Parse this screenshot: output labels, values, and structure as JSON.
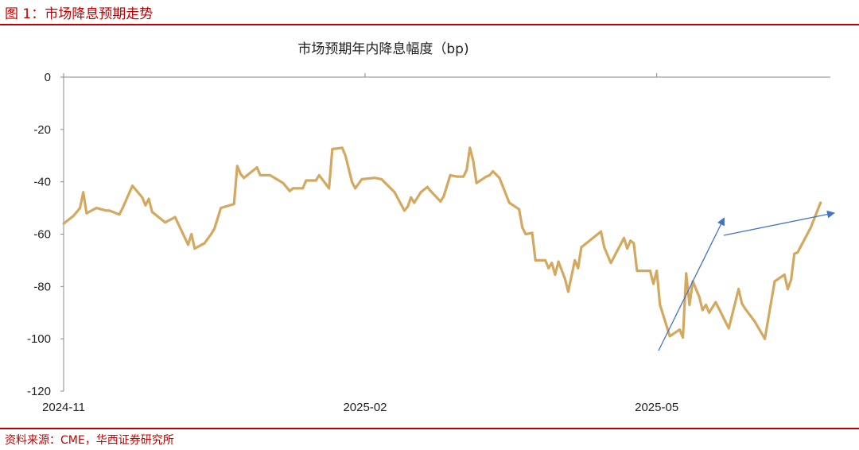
{
  "figure": {
    "label": "图 1：市场降息预期走势",
    "source": "资料来源：CME，华西证券研究所"
  },
  "colors": {
    "accent": "#c00000",
    "line": "#d4a85e",
    "arrow": "#4472c4",
    "axis": "#888888"
  },
  "chart_data": {
    "type": "line",
    "title": "市场预期年内降息幅度（bp)",
    "xlabel": "",
    "ylabel": "",
    "ylim": [
      -120,
      0
    ],
    "yticks": [
      0,
      -20,
      -40,
      -60,
      -80,
      -100,
      -120
    ],
    "xlim": [
      "2024-11-01",
      "2025-06-23"
    ],
    "xticks": [
      {
        "date": "2024-11-01",
        "label": "2024-11"
      },
      {
        "date": "2025-02-01",
        "label": "2025-02"
      },
      {
        "date": "2025-05-01",
        "label": "2025-05"
      }
    ],
    "grid": false,
    "legend": "none",
    "series": [
      {
        "color": "#d4a85e",
        "points": [
          [
            "2024-11-01",
            -56
          ],
          [
            "2024-11-04",
            -53
          ],
          [
            "2024-11-06",
            -50
          ],
          [
            "2024-11-07",
            -44
          ],
          [
            "2024-11-08",
            -52
          ],
          [
            "2024-11-11",
            -50
          ],
          [
            "2024-11-14",
            -51
          ],
          [
            "2024-11-15",
            -51
          ],
          [
            "2024-11-18",
            -52.5
          ],
          [
            "2024-11-19",
            -50
          ],
          [
            "2024-11-22",
            -41.5
          ],
          [
            "2024-11-25",
            -46
          ],
          [
            "2024-11-26",
            -49
          ],
          [
            "2024-11-27",
            -46.5
          ],
          [
            "2024-11-28",
            -51.5
          ],
          [
            "2024-12-02",
            -55.5
          ],
          [
            "2024-12-05",
            -53.5
          ],
          [
            "2024-12-09",
            -64
          ],
          [
            "2024-12-10",
            -60
          ],
          [
            "2024-12-11",
            -65.5
          ],
          [
            "2024-12-14",
            -63.5
          ],
          [
            "2024-12-16",
            -60
          ],
          [
            "2024-12-17",
            -58
          ],
          [
            "2024-12-19",
            -50
          ],
          [
            "2024-12-23",
            -48.5
          ],
          [
            "2024-12-24",
            -34
          ],
          [
            "2024-12-25",
            -37
          ],
          [
            "2024-12-26",
            -38.5
          ],
          [
            "2024-12-30",
            -34.5
          ],
          [
            "2024-12-31",
            -37.5
          ],
          [
            "2025-01-02",
            -37.5
          ],
          [
            "2025-01-03",
            -37.5
          ],
          [
            "2025-01-07",
            -40.5
          ],
          [
            "2025-01-09",
            -43.5
          ],
          [
            "2025-01-10",
            -42.5
          ],
          [
            "2025-01-13",
            -42.5
          ],
          [
            "2025-01-14",
            -39.5
          ],
          [
            "2025-01-17",
            -39.5
          ],
          [
            "2025-01-18",
            -37.5
          ],
          [
            "2025-01-21",
            -42.5
          ],
          [
            "2025-01-22",
            -27.5
          ],
          [
            "2025-01-25",
            -27
          ],
          [
            "2025-01-26",
            -30
          ],
          [
            "2025-01-28",
            -40
          ],
          [
            "2025-01-29",
            -42.5
          ],
          [
            "2025-01-31",
            -39
          ],
          [
            "2025-02-04",
            -38.5
          ],
          [
            "2025-02-06",
            -39
          ],
          [
            "2025-02-10",
            -44
          ],
          [
            "2025-02-13",
            -51
          ],
          [
            "2025-02-14",
            -49.5
          ],
          [
            "2025-02-15",
            -46
          ],
          [
            "2025-02-16",
            -48
          ],
          [
            "2025-02-18",
            -44
          ],
          [
            "2025-02-20",
            -42
          ],
          [
            "2025-02-21",
            -43.5
          ],
          [
            "2025-02-24",
            -47.5
          ],
          [
            "2025-02-25",
            -45.5
          ],
          [
            "2025-02-27",
            -37.5
          ],
          [
            "2025-03-01",
            -38
          ],
          [
            "2025-03-03",
            -38
          ],
          [
            "2025-03-04",
            -35.5
          ],
          [
            "2025-03-05",
            -27
          ],
          [
            "2025-03-06",
            -32
          ],
          [
            "2025-03-07",
            -40.5
          ],
          [
            "2025-03-10",
            -38
          ],
          [
            "2025-03-11",
            -37.5
          ],
          [
            "2025-03-12",
            -36
          ],
          [
            "2025-03-14",
            -38.5
          ],
          [
            "2025-03-17",
            -48
          ],
          [
            "2025-03-20",
            -50.5
          ],
          [
            "2025-03-21",
            -57.5
          ],
          [
            "2025-03-22",
            -60
          ],
          [
            "2025-03-24",
            -59.5
          ],
          [
            "2025-03-25",
            -70
          ],
          [
            "2025-03-28",
            -70
          ],
          [
            "2025-03-29",
            -73
          ],
          [
            "2025-03-30",
            -71
          ],
          [
            "2025-03-31",
            -75.5
          ],
          [
            "2025-04-01",
            -70.5
          ],
          [
            "2025-04-03",
            -77
          ],
          [
            "2025-04-04",
            -82
          ],
          [
            "2025-04-06",
            -70
          ],
          [
            "2025-04-07",
            -73
          ],
          [
            "2025-04-08",
            -65
          ],
          [
            "2025-04-14",
            -59
          ],
          [
            "2025-04-15",
            -65
          ],
          [
            "2025-04-17",
            -71
          ],
          [
            "2025-04-21",
            -61.5
          ],
          [
            "2025-04-22",
            -65.5
          ],
          [
            "2025-04-23",
            -62.5
          ],
          [
            "2025-04-24",
            -63.5
          ],
          [
            "2025-04-25",
            -74
          ],
          [
            "2025-04-29",
            -74
          ],
          [
            "2025-04-30",
            -79
          ],
          [
            "2025-05-01",
            -74
          ],
          [
            "2025-05-02",
            -87
          ],
          [
            "2025-05-03",
            -91
          ],
          [
            "2025-05-05",
            -99
          ],
          [
            "2025-05-08",
            -96.5
          ],
          [
            "2025-05-09",
            -99.5
          ],
          [
            "2025-05-10",
            -75
          ],
          [
            "2025-05-11",
            -87
          ],
          [
            "2025-05-12",
            -78
          ],
          [
            "2025-05-14",
            -84
          ],
          [
            "2025-05-15",
            -89
          ],
          [
            "2025-05-16",
            -87
          ],
          [
            "2025-05-17",
            -90
          ],
          [
            "2025-05-19",
            -86
          ],
          [
            "2025-05-23",
            -96
          ],
          [
            "2025-05-26",
            -81
          ],
          [
            "2025-05-27",
            -86.5
          ],
          [
            "2025-05-28",
            -88.5
          ],
          [
            "2025-05-31",
            -93.5
          ],
          [
            "2025-06-03",
            -100
          ],
          [
            "2025-06-06",
            -78
          ],
          [
            "2025-06-09",
            -75.5
          ],
          [
            "2025-06-10",
            -81
          ],
          [
            "2025-06-11",
            -77.5
          ],
          [
            "2025-06-12",
            -67.5
          ],
          [
            "2025-06-13",
            -67
          ],
          [
            "2025-06-17",
            -57.5
          ],
          [
            "2025-06-20",
            -48
          ]
        ]
      }
    ]
  }
}
